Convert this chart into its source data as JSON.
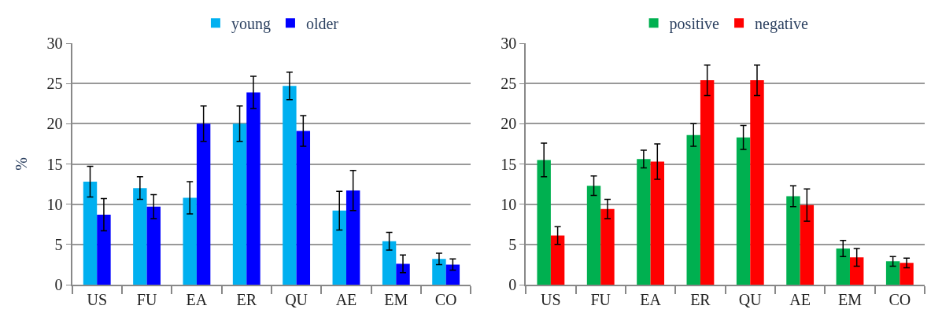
{
  "chart_data": [
    {
      "type": "bar",
      "ylabel": "%",
      "categories": [
        "US",
        "FU",
        "EA",
        "ER",
        "QU",
        "AE",
        "EM",
        "CO"
      ],
      "ylim": [
        0,
        30
      ],
      "yticks": [
        0,
        5,
        10,
        15,
        20,
        25,
        30
      ],
      "grid": "y",
      "legend": "top",
      "series": [
        {
          "name": "young",
          "color": "#00b0f0",
          "values": [
            12.8,
            12.0,
            10.8,
            20.0,
            24.7,
            9.2,
            5.4,
            3.2
          ],
          "errors": [
            1.9,
            1.4,
            2.0,
            2.2,
            1.7,
            2.4,
            1.1,
            0.7
          ]
        },
        {
          "name": "older",
          "color": "#0000ff",
          "values": [
            8.7,
            9.7,
            20.0,
            23.9,
            19.1,
            11.7,
            2.6,
            2.5
          ],
          "errors": [
            2.0,
            1.5,
            2.2,
            2.0,
            1.9,
            2.5,
            1.1,
            0.7
          ]
        }
      ]
    },
    {
      "type": "bar",
      "categories": [
        "US",
        "FU",
        "EA",
        "ER",
        "QU",
        "AE",
        "EM",
        "CO"
      ],
      "ylim": [
        0,
        30
      ],
      "yticks": [
        0,
        5,
        10,
        15,
        20,
        25,
        30
      ],
      "grid": "y",
      "legend": "top",
      "series": [
        {
          "name": "positive",
          "color": "#00b050",
          "values": [
            15.5,
            12.3,
            15.6,
            18.6,
            18.3,
            11.0,
            4.5,
            2.9
          ],
          "errors": [
            2.1,
            1.2,
            1.1,
            1.4,
            1.5,
            1.3,
            1.0,
            0.6
          ]
        },
        {
          "name": "negative",
          "color": "#ff0000",
          "values": [
            6.1,
            9.4,
            15.3,
            25.4,
            25.4,
            9.9,
            3.4,
            2.7
          ],
          "errors": [
            1.1,
            1.2,
            2.2,
            1.9,
            1.9,
            2.0,
            1.1,
            0.6
          ]
        }
      ]
    }
  ]
}
